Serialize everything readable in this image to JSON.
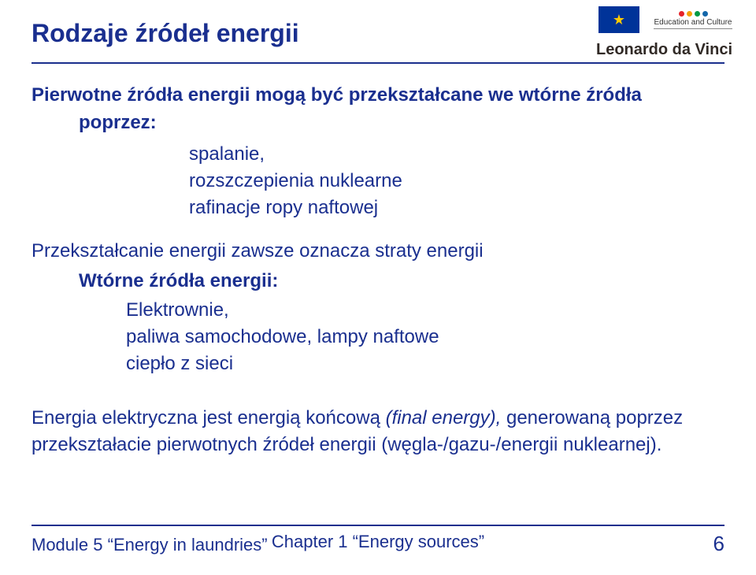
{
  "colors": {
    "primary_text": "#1a2f8f",
    "rule": "#1b2f8d",
    "background": "#ffffff",
    "eu_flag_bg": "#003399",
    "eu_stars": "#ffcc00"
  },
  "fontsizes": {
    "title": 32,
    "body": 24,
    "footer": 22,
    "pagenum": 26,
    "logo_small": 10,
    "ldv": 20
  },
  "logos": {
    "eu_flag_label": "★",
    "ec_line1": "Education and Culture",
    "leonardo": "Leonardo da Vinci",
    "ec_dot_colors": [
      "#e52329",
      "#f6a000",
      "#009a44",
      "#1366a9"
    ]
  },
  "title": "Rodzaje źródeł energii",
  "content": {
    "intro_line1": "Pierwotne źródła energii mogą być przekształcane we wtórne źródła",
    "intro_line2": "poprzez:",
    "primary_transforms": {
      "item1": "spalanie,",
      "item2": "rozszczepienia nuklearne",
      "item3": "rafinacje ropy naftowej"
    },
    "loss_statement": "Przekształcanie energii zawsze oznacza straty energii",
    "secondary_heading": "Wtórne źródła energii:",
    "secondary_items": {
      "item1": "Elektrownie,",
      "item2": "paliwa samochodowe, lampy naftowe",
      "item3": "ciepło z sieci"
    },
    "final_para_pre": "Energia elektryczna jest energią końcową ",
    "final_para_ital": "(final energy), ",
    "final_para_post": "generowaną poprzez przekształacie pierwotnych źródeł energii (węgla-/gazu-/energii nuklearnej)."
  },
  "footer": {
    "left": "Module  5 “Energy in laundries”",
    "center": "Chapter 1 “Energy sources”",
    "page": "6"
  }
}
